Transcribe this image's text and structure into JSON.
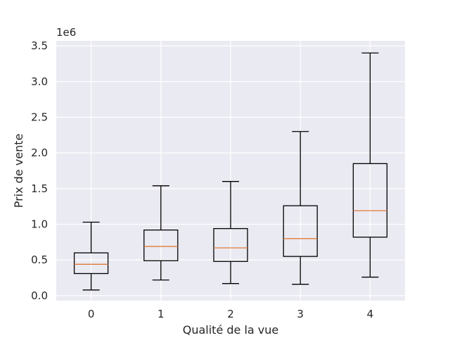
{
  "chart_data": {
    "type": "box",
    "title": "",
    "xlabel": "Qualité de la vue",
    "ylabel": "Prix de vente",
    "y_offset_label": "1e6",
    "categories": [
      "0",
      "1",
      "2",
      "3",
      "4"
    ],
    "y_ticks": [
      0.0,
      0.5,
      1.0,
      1.5,
      2.0,
      2.5,
      3.0,
      3.5
    ],
    "y_tick_labels": [
      "0.0",
      "0.5",
      "1.0",
      "1.5",
      "2.0",
      "2.5",
      "3.0",
      "3.5"
    ],
    "ylim": [
      -0.07,
      3.57
    ],
    "y_scale_factor": 1000000,
    "grid": true,
    "boxes": [
      {
        "category": "0",
        "whisker_low": 0.08,
        "q1": 0.31,
        "median": 0.44,
        "q3": 0.6,
        "whisker_high": 1.03
      },
      {
        "category": "1",
        "whisker_low": 0.22,
        "q1": 0.49,
        "median": 0.69,
        "q3": 0.92,
        "whisker_high": 1.54
      },
      {
        "category": "2",
        "whisker_low": 0.17,
        "q1": 0.48,
        "median": 0.67,
        "q3": 0.94,
        "whisker_high": 1.6
      },
      {
        "category": "3",
        "whisker_low": 0.16,
        "q1": 0.55,
        "median": 0.8,
        "q3": 1.26,
        "whisker_high": 2.3
      },
      {
        "category": "4",
        "whisker_low": 0.26,
        "q1": 0.82,
        "median": 1.19,
        "q3": 1.85,
        "whisker_high": 3.4
      }
    ],
    "colors": {
      "plot_background": "#eaeaf2",
      "grid": "#ffffff",
      "box": "#000000",
      "median": "#e07b39"
    }
  }
}
